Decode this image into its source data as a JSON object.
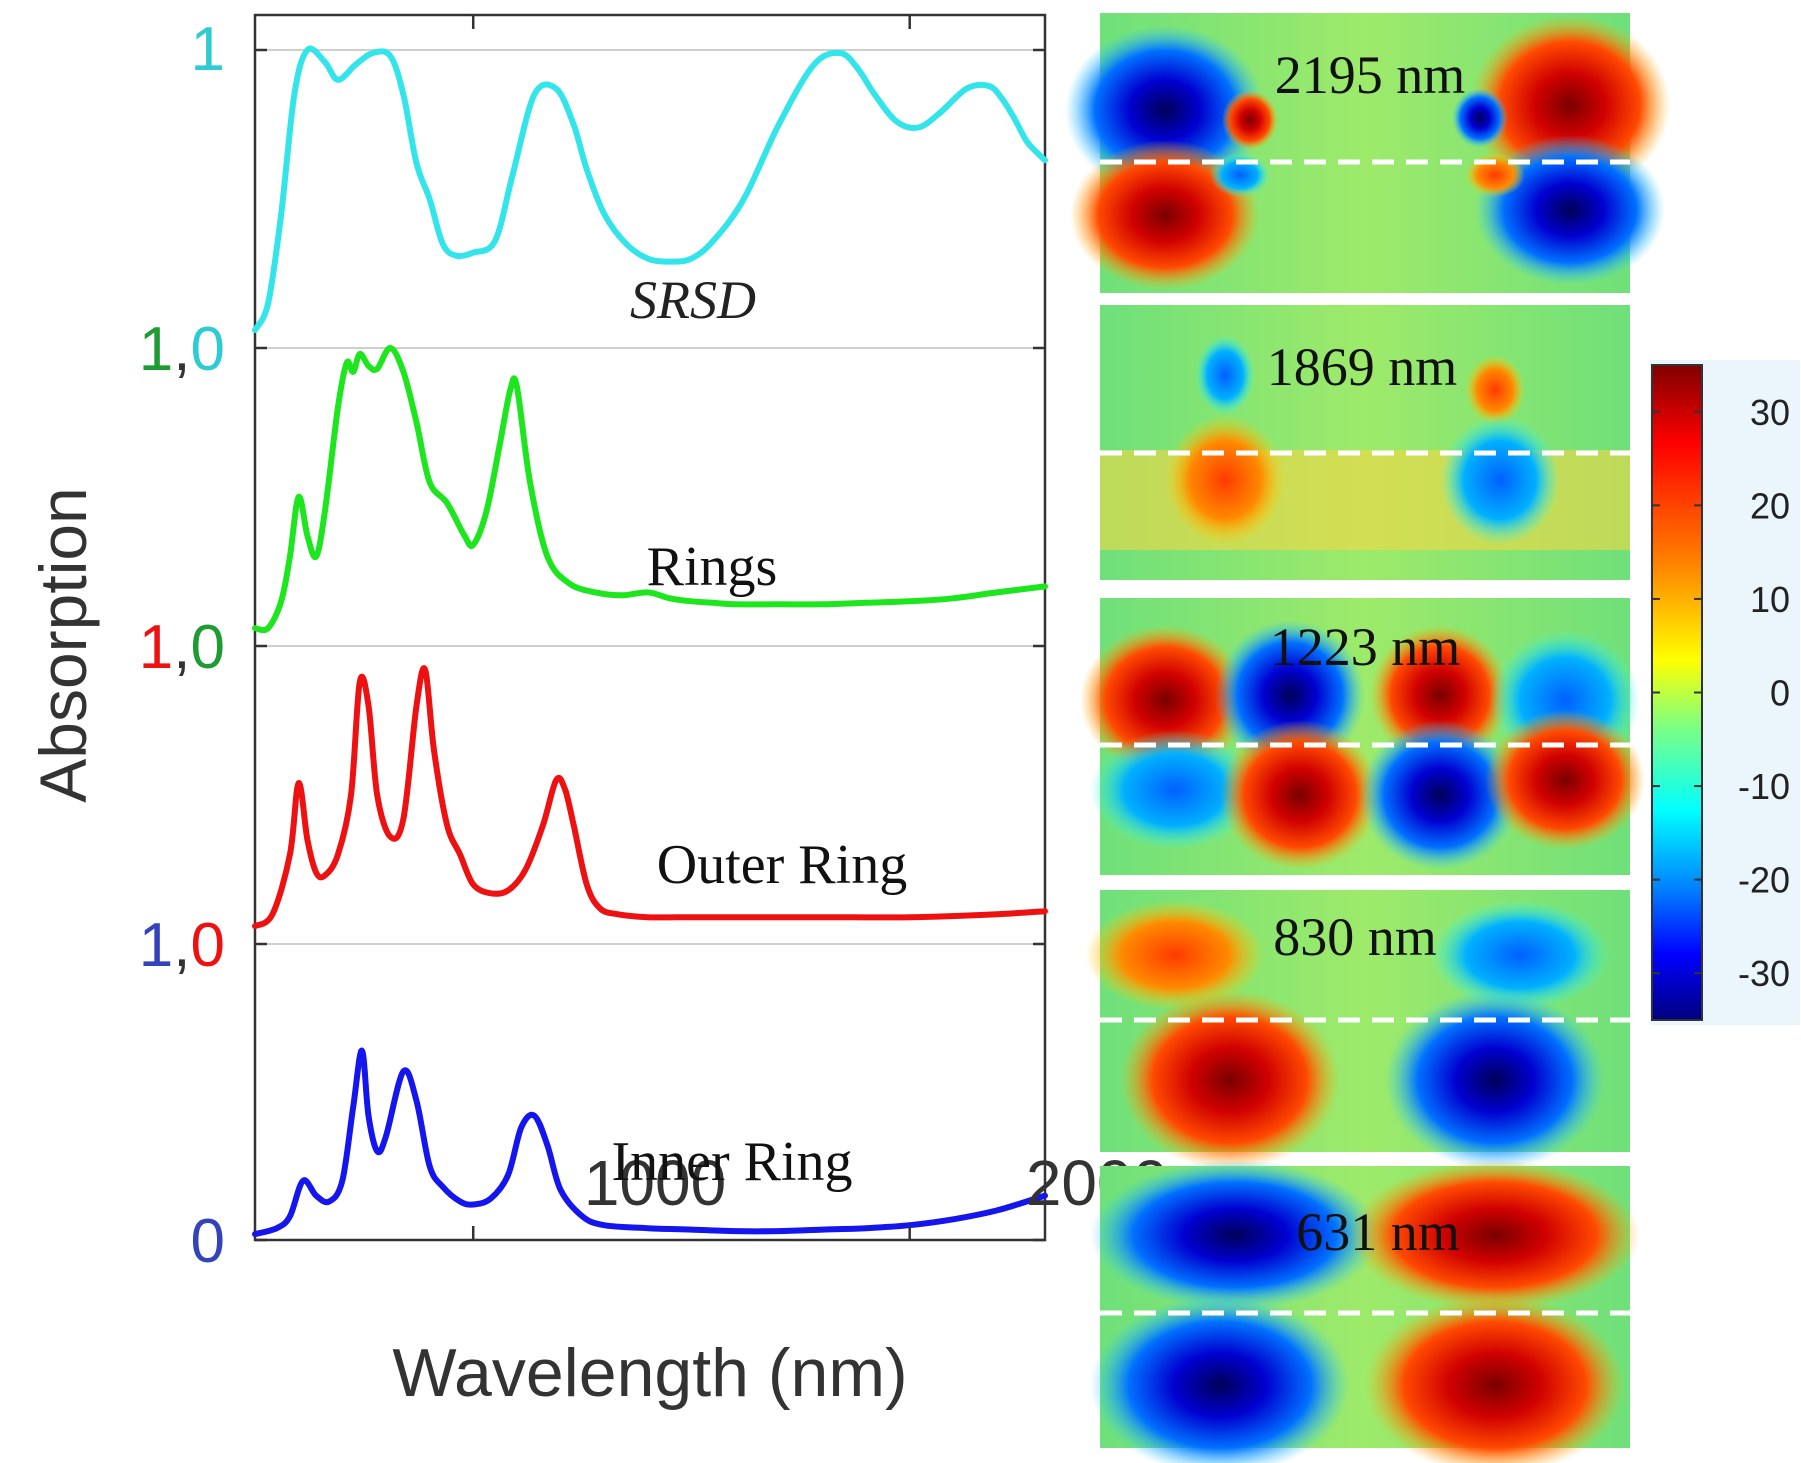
{
  "chart_data": {
    "type": "line",
    "title": "",
    "xlabel": "Wavelength (nm)",
    "ylabel": "Absorption",
    "xlim": [
      500,
      2310
    ],
    "x_ticks": [
      1000,
      2000
    ],
    "stack_tick_labels": [
      {
        "parts": [
          {
            "text": "1",
            "color": "#2eccd2"
          }
        ]
      },
      {
        "parts": [
          {
            "text": "1",
            "color": "#1e9b33"
          },
          {
            "text": ",",
            "color": "#333333"
          },
          {
            "text": "0",
            "color": "#2eccd2"
          }
        ]
      },
      {
        "parts": [
          {
            "text": "1",
            "color": "#ee1111"
          },
          {
            "text": ",",
            "color": "#333333"
          },
          {
            "text": "0",
            "color": "#1e9b33"
          }
        ]
      },
      {
        "parts": [
          {
            "text": "1",
            "color": "#3344bb"
          },
          {
            "text": ",",
            "color": "#333333"
          },
          {
            "text": "0",
            "color": "#ee1111"
          }
        ]
      },
      {
        "parts": [
          {
            "text": "0",
            "color": "#3344bb"
          }
        ]
      }
    ],
    "series": [
      {
        "name": "SRSD",
        "label": "SRSD",
        "color": "#33e5ea",
        "ylim": [
          0,
          1
        ],
        "x": [
          500,
          530,
          560,
          590,
          620,
          660,
          690,
          730,
          770,
          810,
          840,
          870,
          900,
          930,
          960,
          1000,
          1050,
          1090,
          1140,
          1190,
          1230,
          1260,
          1300,
          1350,
          1400,
          1450,
          1500,
          1550,
          1620,
          1700,
          1780,
          1840,
          1880,
          1920,
          1970,
          2020,
          2070,
          2130,
          2180,
          2210,
          2240,
          2270,
          2310
        ],
        "y": [
          0.06,
          0.15,
          0.45,
          0.85,
          1.0,
          0.96,
          0.9,
          0.95,
          0.99,
          0.98,
          0.85,
          0.62,
          0.5,
          0.35,
          0.31,
          0.32,
          0.36,
          0.58,
          0.85,
          0.87,
          0.75,
          0.6,
          0.45,
          0.35,
          0.3,
          0.29,
          0.3,
          0.36,
          0.5,
          0.75,
          0.95,
          0.99,
          0.94,
          0.85,
          0.76,
          0.74,
          0.79,
          0.87,
          0.88,
          0.84,
          0.77,
          0.69,
          0.63
        ]
      },
      {
        "name": "Rings",
        "label": "Rings",
        "color": "#1ee61e",
        "ylim": [
          0,
          1
        ],
        "x": [
          500,
          530,
          560,
          580,
          600,
          620,
          640,
          660,
          690,
          710,
          725,
          740,
          760,
          780,
          810,
          840,
          870,
          900,
          940,
          980,
          1000,
          1030,
          1060,
          1085,
          1100,
          1130,
          1170,
          1220,
          1280,
          1340,
          1400,
          1450,
          1500,
          1550,
          1600,
          1700,
          1800,
          1900,
          2000,
          2100,
          2200,
          2310
        ],
        "y": [
          0.06,
          0.06,
          0.15,
          0.3,
          0.5,
          0.37,
          0.3,
          0.45,
          0.8,
          0.95,
          0.92,
          0.98,
          0.94,
          0.93,
          1.0,
          0.92,
          0.75,
          0.55,
          0.48,
          0.37,
          0.34,
          0.45,
          0.67,
          0.86,
          0.87,
          0.55,
          0.3,
          0.21,
          0.18,
          0.17,
          0.18,
          0.16,
          0.15,
          0.145,
          0.14,
          0.14,
          0.14,
          0.145,
          0.15,
          0.16,
          0.18,
          0.2
        ]
      },
      {
        "name": "Outer Ring",
        "label": "Outer Ring",
        "color": "#ee1111",
        "ylim": [
          0,
          1
        ],
        "x": [
          500,
          540,
          580,
          600,
          620,
          640,
          660,
          690,
          720,
          740,
          760,
          780,
          810,
          840,
          870,
          890,
          910,
          940,
          970,
          1000,
          1040,
          1080,
          1120,
          1160,
          1190,
          1210,
          1230,
          1260,
          1290,
          1330,
          1400,
          1500,
          1600,
          1800,
          2000,
          2200,
          2310
        ],
        "y": [
          0.06,
          0.1,
          0.3,
          0.54,
          0.35,
          0.24,
          0.23,
          0.3,
          0.5,
          0.88,
          0.8,
          0.5,
          0.36,
          0.42,
          0.8,
          0.92,
          0.65,
          0.4,
          0.3,
          0.2,
          0.17,
          0.18,
          0.25,
          0.4,
          0.55,
          0.52,
          0.4,
          0.2,
          0.12,
          0.1,
          0.09,
          0.09,
          0.09,
          0.09,
          0.09,
          0.1,
          0.11
        ]
      },
      {
        "name": "Inner Ring",
        "label": "Inner Ring",
        "color": "#1515ee",
        "ylim": [
          0,
          1
        ],
        "x": [
          500,
          550,
          580,
          610,
          640,
          670,
          700,
          725,
          745,
          760,
          780,
          800,
          840,
          870,
          900,
          930,
          970,
          1000,
          1040,
          1080,
          1110,
          1140,
          1170,
          1200,
          1250,
          1300,
          1400,
          1500,
          1600,
          1700,
          1800,
          1900,
          2000,
          2100,
          2200,
          2310
        ],
        "y": [
          0.02,
          0.04,
          0.08,
          0.2,
          0.15,
          0.13,
          0.2,
          0.45,
          0.64,
          0.42,
          0.3,
          0.35,
          0.57,
          0.47,
          0.25,
          0.18,
          0.13,
          0.12,
          0.14,
          0.22,
          0.38,
          0.42,
          0.32,
          0.17,
          0.08,
          0.05,
          0.04,
          0.035,
          0.03,
          0.03,
          0.035,
          0.04,
          0.05,
          0.07,
          0.1,
          0.15
        ]
      }
    ]
  },
  "field_maps": {
    "colorbar": {
      "ticks": [
        "30",
        "20",
        "10",
        "0",
        "-10",
        "-20",
        "-30"
      ],
      "range": [
        -35,
        35
      ],
      "colors": [
        "#7f0000",
        "#ff0000",
        "#ff7f00",
        "#ffff00",
        "#7fff7f",
        "#00ffff",
        "#007fff",
        "#0000ff",
        "#00007f"
      ]
    },
    "panels": [
      {
        "label": "2195 nm"
      },
      {
        "label": "1869 nm"
      },
      {
        "label": "1223 nm"
      },
      {
        "label": "830 nm"
      },
      {
        "label": "631 nm"
      }
    ]
  }
}
